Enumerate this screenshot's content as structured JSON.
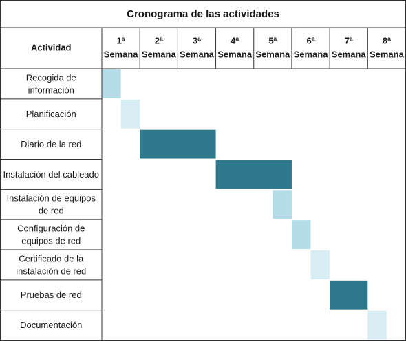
{
  "chart_data": {
    "type": "table",
    "title": "Cronograma de las actividades",
    "activity_header": "Actividad",
    "weeks": [
      {
        "num": "1ª",
        "word": "Semana"
      },
      {
        "num": "2ª",
        "word": "Semana"
      },
      {
        "num": "3ª",
        "word": "Semana"
      },
      {
        "num": "4ª",
        "word": "Semana"
      },
      {
        "num": "5ª",
        "word": "Semana"
      },
      {
        "num": "6ª",
        "word": "Semana"
      },
      {
        "num": "7ª",
        "word": "Semana"
      },
      {
        "num": "8ª",
        "word": "Semana"
      }
    ],
    "tasks": [
      {
        "lines": [
          "Recogida de",
          "información"
        ],
        "start": 1,
        "end": 1.5,
        "color": "#b5dde9"
      },
      {
        "lines": [
          "Planificación"
        ],
        "start": 1.5,
        "end": 2,
        "color": "#d8eef4"
      },
      {
        "lines": [
          "Diario de la red"
        ],
        "start": 2,
        "end": 4,
        "color": "#2e7a8c"
      },
      {
        "lines": [
          "Instalación del cableado"
        ],
        "start": 4,
        "end": 6,
        "color": "#2e7a8c"
      },
      {
        "lines": [
          "Instalación de equipos",
          "de red"
        ],
        "start": 5.5,
        "end": 6,
        "color": "#b5dde9"
      },
      {
        "lines": [
          "Configuración de",
          "equipos de red"
        ],
        "start": 6,
        "end": 6.5,
        "color": "#b5dde9"
      },
      {
        "lines": [
          "Certificado de la",
          "instalación de red"
        ],
        "start": 6.5,
        "end": 7,
        "color": "#d8eef4"
      },
      {
        "lines": [
          "Pruebas de red"
        ],
        "start": 7,
        "end": 8,
        "color": "#2e7a8c"
      },
      {
        "lines": [
          "Documentación"
        ],
        "start": 8,
        "end": 8.5,
        "color": "#d8eef4"
      }
    ]
  }
}
